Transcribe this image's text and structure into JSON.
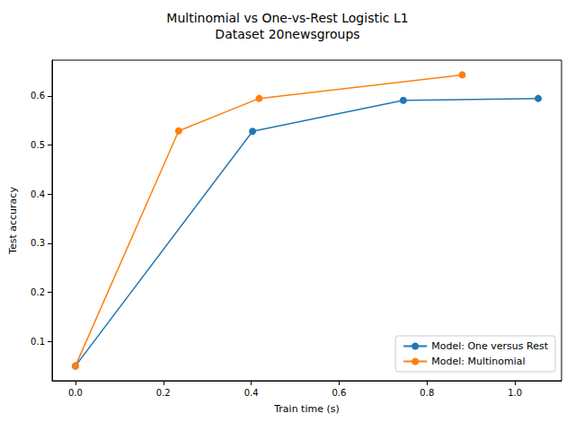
{
  "chart_data": {
    "type": "line",
    "title": "Multinomial vs One-vs-Rest Logistic L1",
    "subtitle": "Dataset 20newsgroups",
    "x_label": "Train time (s)",
    "y_label": "Test accuracy",
    "series": [
      {
        "name": "Model: One versus Rest",
        "color": "#1f77b4",
        "marker": "circle",
        "x": [
          0.0,
          0.403,
          0.746,
          1.053
        ],
        "values": [
          0.05,
          0.528,
          0.591,
          0.595
        ]
      },
      {
        "name": "Model: Multinomial",
        "color": "#ff7f0e",
        "marker": "circle",
        "x": [
          0.0,
          0.235,
          0.418,
          0.88
        ],
        "values": [
          0.05,
          0.529,
          0.595,
          0.643
        ]
      }
    ],
    "xlim": [
      -0.053,
      1.106
    ],
    "xticks": [
      {
        "value": 0,
        "label": "0.0"
      },
      0.2,
      0.4,
      0.6,
      0.8,
      {
        "value": 1,
        "label": "1.0"
      }
    ],
    "ylim": [
      0.02,
      0.673
    ],
    "yticks": [
      0.1,
      0.2,
      0.3,
      0.4,
      0.5,
      0.6
    ],
    "grid": false,
    "legend": "lower right"
  }
}
